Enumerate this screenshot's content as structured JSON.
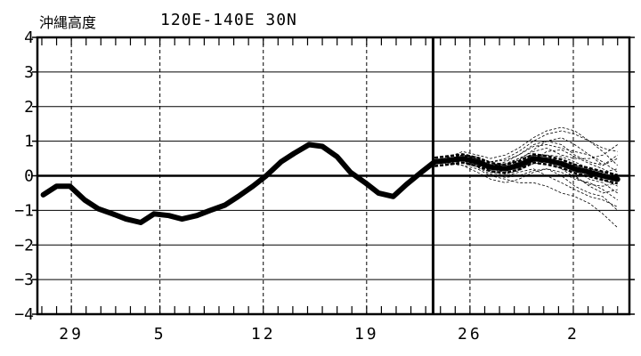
{
  "title": "沖縄高度",
  "region": "120E-140E  30N",
  "chart_data": {
    "type": "line",
    "title": "沖縄高度",
    "subtitle": "120E-140E  30N",
    "xlabel": "",
    "ylabel": "",
    "ylim": [
      -4,
      4
    ],
    "yticks": [
      -4,
      -3,
      -2,
      -1,
      0,
      1,
      2,
      3,
      4
    ],
    "xlim": [
      -1.3,
      38.8
    ],
    "xtick_labels": [
      {
        "label": "29",
        "x": 1
      },
      {
        "label": "5",
        "x": 7
      },
      {
        "label": "12",
        "x": 14
      },
      {
        "label": "19",
        "x": 21
      },
      {
        "label": "26",
        "x": 28
      },
      {
        "label": "2",
        "x": 35
      }
    ],
    "x_gridlines": [
      1,
      7,
      14,
      21,
      28,
      35
    ],
    "y_gridlines": [
      -3,
      -2,
      -1,
      1,
      2,
      3
    ],
    "forecast_start": 25.5,
    "series": [
      {
        "kind": "observed",
        "x": [
          -0.9,
          0,
          0.9,
          1.9,
          2.8,
          3.8,
          4.7,
          5.7,
          6.6,
          7.6,
          8.5,
          9.5,
          10.4,
          11.4,
          12.3,
          13.3,
          14.2,
          15.2,
          16.1,
          17.1,
          18.0,
          19.0,
          19.9,
          20.9,
          21.8,
          22.8,
          23.7,
          24.7,
          25.6
        ],
        "values": [
          -0.55,
          -0.3,
          -0.3,
          -0.7,
          -0.95,
          -1.1,
          -1.25,
          -1.35,
          -1.1,
          -1.15,
          -1.25,
          -1.15,
          -1.0,
          -0.85,
          -0.6,
          -0.3,
          0.0,
          0.4,
          0.65,
          0.9,
          0.85,
          0.55,
          0.1,
          -0.2,
          -0.5,
          -0.6,
          -0.25,
          0.1,
          0.4
        ]
      },
      {
        "kind": "ensemble-mean",
        "x": [
          25.6,
          26.6,
          27.5,
          28.5,
          29.4,
          30.4,
          31.3,
          32.3,
          33.2,
          34.2,
          35.1,
          36.1,
          37.0,
          38.0
        ],
        "values": [
          0.4,
          0.45,
          0.5,
          0.4,
          0.25,
          0.2,
          0.3,
          0.5,
          0.45,
          0.35,
          0.2,
          0.1,
          0.0,
          -0.1
        ]
      },
      {
        "kind": "ensemble-member",
        "x": [
          25.6,
          26.6,
          27.5,
          28.5,
          29.4,
          30.4,
          31.3,
          32.3,
          33.2,
          34.2,
          35.1,
          36.1,
          37.0,
          38.0
        ],
        "members": [
          [
            0.4,
            0.5,
            0.6,
            0.5,
            0.4,
            0.5,
            0.7,
            1.0,
            1.2,
            1.3,
            1.2,
            1.0,
            0.8,
            0.7
          ],
          [
            0.4,
            0.4,
            0.3,
            0.2,
            0.0,
            -0.1,
            -0.2,
            -0.2,
            -0.3,
            -0.5,
            -0.6,
            -0.8,
            -1.1,
            -1.5
          ],
          [
            0.4,
            0.5,
            0.6,
            0.4,
            0.3,
            0.4,
            0.6,
            0.9,
            1.0,
            0.9,
            0.6,
            0.4,
            0.3,
            0.5
          ],
          [
            0.4,
            0.45,
            0.4,
            0.3,
            0.1,
            0.0,
            0.1,
            0.2,
            0.0,
            -0.2,
            -0.4,
            -0.6,
            -0.7,
            -0.9
          ],
          [
            0.4,
            0.55,
            0.7,
            0.6,
            0.5,
            0.6,
            0.8,
            1.1,
            1.3,
            1.4,
            1.3,
            1.0,
            0.7,
            0.3
          ],
          [
            0.4,
            0.4,
            0.45,
            0.3,
            0.2,
            0.1,
            0.2,
            0.4,
            0.5,
            0.3,
            0.0,
            -0.3,
            -0.5,
            -0.4
          ],
          [
            0.4,
            0.5,
            0.5,
            0.45,
            0.3,
            0.3,
            0.5,
            0.7,
            0.8,
            0.6,
            0.5,
            0.5,
            0.6,
            0.9
          ],
          [
            0.4,
            0.35,
            0.3,
            0.1,
            -0.1,
            -0.2,
            -0.1,
            0.1,
            0.2,
            0.1,
            -0.1,
            -0.2,
            -0.4,
            -0.7
          ],
          [
            0.4,
            0.5,
            0.55,
            0.5,
            0.35,
            0.25,
            0.35,
            0.55,
            0.6,
            0.55,
            0.4,
            0.2,
            0.1,
            0.2
          ],
          [
            0.4,
            0.45,
            0.5,
            0.35,
            0.15,
            0.05,
            0.15,
            0.35,
            0.4,
            0.2,
            -0.05,
            -0.25,
            -0.3,
            -0.2
          ],
          [
            0.4,
            0.5,
            0.6,
            0.55,
            0.4,
            0.45,
            0.6,
            0.85,
            0.9,
            0.8,
            0.7,
            0.6,
            0.4,
            0.1
          ],
          [
            0.4,
            0.4,
            0.4,
            0.25,
            0.05,
            -0.05,
            0.0,
            0.15,
            0.2,
            0.0,
            -0.3,
            -0.5,
            -0.6,
            -1.0
          ],
          [
            0.4,
            0.45,
            0.55,
            0.45,
            0.3,
            0.35,
            0.5,
            0.6,
            0.5,
            0.35,
            0.3,
            0.2,
            -0.1,
            -0.3
          ],
          [
            0.4,
            0.5,
            0.45,
            0.35,
            0.25,
            0.15,
            0.25,
            0.45,
            0.7,
            0.75,
            0.55,
            0.35,
            0.2,
            0.0
          ],
          [
            0.4,
            0.4,
            0.5,
            0.4,
            0.2,
            0.2,
            0.4,
            0.6,
            0.55,
            0.4,
            0.15,
            -0.1,
            -0.2,
            -0.5
          ],
          [
            0.4,
            0.55,
            0.6,
            0.5,
            0.3,
            0.3,
            0.45,
            0.75,
            1.0,
            1.1,
            0.9,
            0.6,
            0.3,
            0.6
          ]
        ]
      }
    ]
  }
}
